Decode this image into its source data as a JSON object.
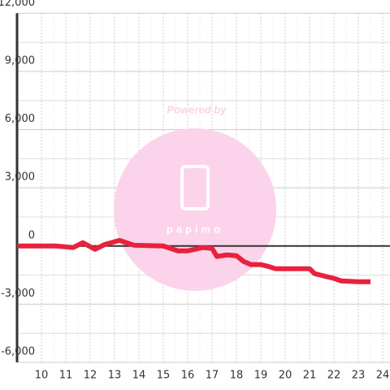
{
  "chart_data": {
    "type": "line",
    "watermark": "Powered by",
    "watermark_logo": "papimo",
    "x": [
      9.0,
      10.6,
      11.3,
      11.7,
      12.2,
      12.6,
      13.2,
      13.8,
      15.0,
      15.3,
      15.6,
      16.0,
      16.3,
      16.6,
      17.0,
      17.2,
      17.6,
      18.0,
      18.3,
      18.6,
      19.0,
      19.3,
      19.6,
      20.0,
      20.6,
      21.0,
      21.2,
      21.6,
      22.0,
      22.3,
      23.0,
      23.5
    ],
    "series": [
      {
        "color": "#e8223d",
        "values": [
          0,
          0,
          -80,
          170,
          -170,
          80,
          290,
          40,
          0,
          -125,
          -250,
          -250,
          -170,
          -80,
          -125,
          -540,
          -460,
          -500,
          -800,
          -960,
          -960,
          -1050,
          -1170,
          -1170,
          -1170,
          -1170,
          -1420,
          -1550,
          -1670,
          -1800,
          -1840,
          -1840
        ]
      }
    ],
    "xlim": [
      9,
      24.3
    ],
    "xticks": [
      10,
      11,
      12,
      13,
      14,
      15,
      16,
      17,
      18,
      19,
      20,
      21,
      22,
      23,
      24
    ],
    "ylim": [
      -6000,
      12000
    ],
    "yticks": [
      {
        "value": -6000,
        "label": "-6,000"
      },
      {
        "value": -3000,
        "label": "-3,000"
      },
      0,
      {
        "value": 3000,
        "label": "3,000"
      },
      {
        "value": 6000,
        "label": "6,000"
      },
      {
        "value": 9000,
        "label": "9,000"
      },
      {
        "value": 12000,
        "label": "12,000"
      }
    ],
    "grid": true
  }
}
